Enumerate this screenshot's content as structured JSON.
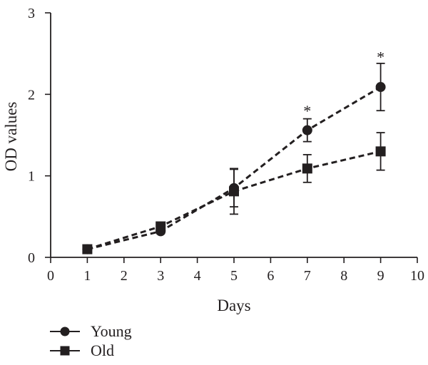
{
  "chart_data": {
    "type": "line",
    "xlabel": "Days",
    "ylabel": "OD values",
    "xlim": [
      0,
      10
    ],
    "ylim": [
      0,
      3
    ],
    "xticks": [
      "0",
      "1",
      "2",
      "3",
      "4",
      "5",
      "6",
      "7",
      "8",
      "9",
      "10"
    ],
    "yticks": [
      "0",
      "1",
      "2",
      "3"
    ],
    "grid": false,
    "legend_position": "bottom-left",
    "series": [
      {
        "name": "Young",
        "marker": "circle",
        "x": [
          1,
          3,
          5,
          7,
          9
        ],
        "y": [
          0.1,
          0.32,
          0.85,
          1.56,
          2.09
        ],
        "error": [
          0.02,
          0.03,
          0.23,
          0.14,
          0.29
        ]
      },
      {
        "name": "Old",
        "marker": "square",
        "x": [
          1,
          3,
          5,
          7,
          9
        ],
        "y": [
          0.1,
          0.38,
          0.81,
          1.09,
          1.3
        ],
        "error": [
          0.02,
          0.03,
          0.28,
          0.17,
          0.23
        ]
      }
    ],
    "annotations": [
      {
        "text": "*",
        "x": 7,
        "y": 1.82
      },
      {
        "text": "*",
        "x": 9,
        "y": 2.48
      }
    ],
    "colors": {
      "ink": "#231f20"
    }
  }
}
